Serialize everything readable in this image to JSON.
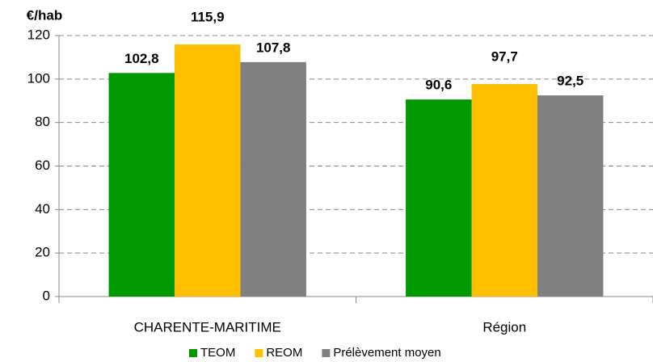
{
  "chart_data": {
    "type": "bar",
    "ylabel": "€/hab",
    "categories": [
      "CHARENTE-MARITIME",
      "Région"
    ],
    "series": [
      {
        "name": "TEOM",
        "color": "#009900",
        "values": [
          102.8,
          90.6
        ],
        "value_labels": [
          "102,8",
          "90,6"
        ]
      },
      {
        "name": "REOM",
        "color": "#ffc000",
        "values": [
          115.9,
          97.7
        ],
        "value_labels": [
          "115,9",
          "97,7"
        ]
      },
      {
        "name": "Prélèvement moyen",
        "color": "#808080",
        "values": [
          107.8,
          92.5
        ],
        "value_labels": [
          "107,8",
          "92,5"
        ]
      }
    ],
    "ylim": [
      0,
      120
    ],
    "yticks": [
      0,
      20,
      40,
      60,
      80,
      100,
      120
    ],
    "grid": true,
    "legend": "bottom"
  }
}
